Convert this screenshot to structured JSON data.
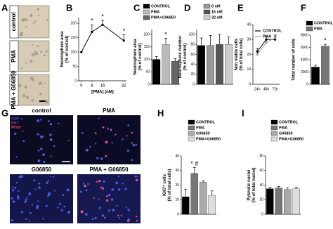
{
  "figure": {
    "letters": [
      "A",
      "B",
      "C",
      "D",
      "E",
      "F",
      "G",
      "H",
      "I"
    ],
    "panel_a_labels": [
      "control",
      "PMA",
      "PMA + G06850"
    ],
    "panel_g_labels": [
      "control",
      "PMA",
      "G06850",
      "PMA + G06850"
    ],
    "panel_g_channels": [
      "DAPI",
      "Ki67",
      "Merge"
    ]
  },
  "chart_data": [
    {
      "type": "line",
      "ylabel": [
        "Neurosphere area",
        "(% of control)"
      ],
      "xlabel": "[PMA] (nM)",
      "x": [
        0,
        8,
        16,
        32
      ],
      "xlim": [
        -2,
        34
      ],
      "xticks": [
        0,
        8,
        16,
        32
      ],
      "series": [
        {
          "color": "#000000",
          "values": [
            100,
            170,
            195,
            140
          ],
          "errors": [
            0,
            25,
            15,
            20
          ],
          "markers": [
            null,
            "*",
            "*",
            "*"
          ]
        }
      ],
      "ylim": [
        0,
        220
      ],
      "yticks": [
        0,
        50,
        100,
        150,
        200
      ]
    },
    {
      "type": "bar",
      "ylabel": [
        "Neurosphere area",
        "(% of control)"
      ],
      "ylim": [
        0,
        220
      ],
      "yticks": [
        0,
        50,
        100,
        150,
        200
      ],
      "series": [
        {
          "name": "CONTROL",
          "color": "#000000",
          "values": [
            100
          ],
          "errors": [
            12
          ]
        },
        {
          "name": "PMA",
          "color": "#bbbbbb",
          "values": [
            160
          ],
          "errors": [
            25
          ],
          "marker": "*"
        },
        {
          "name": "PMA+G06850",
          "color": "#666666",
          "values": [
            93
          ],
          "errors": [
            10
          ]
        }
      ]
    },
    {
      "type": "bar",
      "ylabel": [
        "Neurosphere number",
        "(% of control)"
      ],
      "ylim": [
        0,
        110
      ],
      "yticks": [
        0,
        20,
        40,
        60,
        80,
        100
      ],
      "series": [
        {
          "color": "#000000",
          "values": [
            78
          ],
          "errors": [
            15
          ]
        },
        {
          "name": "8 nM",
          "color": "#999999",
          "values": [
            78
          ],
          "errors": [
            20
          ]
        },
        {
          "name": "16 nM",
          "color": "#555555",
          "values": [
            80
          ],
          "errors": [
            20
          ]
        },
        {
          "name": "32 nM",
          "color": "#cccccc",
          "values": [
            80
          ],
          "errors": [
            15
          ]
        }
      ]
    },
    {
      "type": "line",
      "ylabel": [
        "Non viable cells",
        "(% of total cells)"
      ],
      "categories": [
        "24h",
        "48h",
        "72h"
      ],
      "ylim": [
        0,
        40
      ],
      "yticks": [
        0,
        10,
        20,
        30,
        40
      ],
      "series": [
        {
          "name": "CONTROL",
          "color": "#000000",
          "values": [
            22,
            30,
            30
          ],
          "errors": [
            2,
            2,
            2
          ]
        },
        {
          "name": "PMA",
          "color": "#999999",
          "values": [
            20,
            28,
            31
          ],
          "errors": [
            2,
            2,
            2
          ]
        }
      ]
    },
    {
      "type": "bar",
      "ylabel": [
        "Total number of cells"
      ],
      "ylim": [
        0,
        8000
      ],
      "yticks": [
        0,
        2000,
        4000,
        6000,
        8000
      ],
      "series": [
        {
          "name": "CONTROL",
          "color": "#000000",
          "values": [
            2800
          ],
          "errors": [
            300
          ]
        },
        {
          "name": "PMA",
          "color": "#777777",
          "values": [
            6200
          ],
          "errors": [
            300
          ],
          "marker": "*"
        }
      ]
    },
    {
      "type": "bar",
      "ylabel": [
        "Ki67⁺ cells",
        "(% of total cells)"
      ],
      "ylim": [
        0,
        40
      ],
      "yticks": [
        0,
        10,
        20,
        30,
        40
      ],
      "series": [
        {
          "name": "CONTROL",
          "color": "#000000",
          "values": [
            12
          ],
          "errors": [
            5
          ]
        },
        {
          "name": "PMA",
          "color": "#777777",
          "values": [
            28
          ],
          "errors": [
            4
          ],
          "marker": "* #"
        },
        {
          "name": "G06850",
          "color": "#aaaaaa",
          "values": [
            22
          ],
          "errors": [
            1
          ]
        },
        {
          "name": "PMA+G06850",
          "color": "#dddddd",
          "values": [
            13
          ],
          "errors": [
            3
          ]
        }
      ]
    },
    {
      "type": "bar",
      "ylabel": [
        "Pyknotic nuclei",
        "(% of total nuclei)"
      ],
      "ylim": [
        0,
        80
      ],
      "yticks": [
        0,
        20,
        40,
        60,
        80
      ],
      "series": [
        {
          "name": "CONTROL",
          "color": "#000000",
          "values": [
            35
          ],
          "errors": [
            2
          ]
        },
        {
          "name": "PMA",
          "color": "#777777",
          "values": [
            36
          ],
          "errors": [
            2
          ]
        },
        {
          "name": "G06850",
          "color": "#aaaaaa",
          "values": [
            34
          ],
          "errors": [
            2
          ]
        },
        {
          "name": "PMA+G06850",
          "color": "#dddddd",
          "values": [
            35
          ],
          "errors": [
            2
          ]
        }
      ]
    }
  ]
}
